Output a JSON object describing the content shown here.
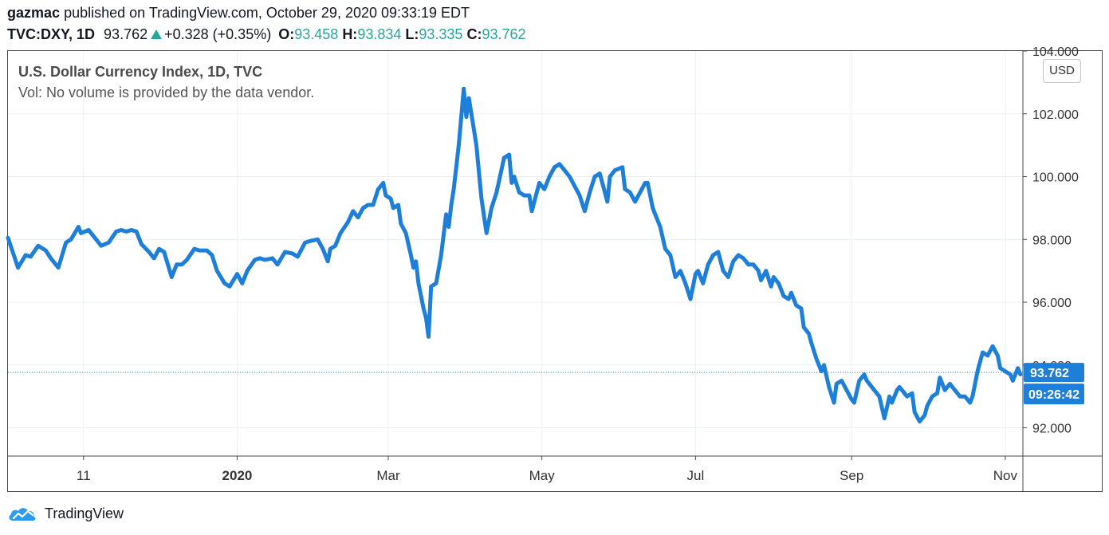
{
  "header": {
    "author": "gazmac",
    "published_text": "published on TradingView.com, October 29, 2020 09:33:19 EDT",
    "symbol": "TVC:DXY, 1D",
    "last": "93.762",
    "change": "+0.328 (+0.35%)",
    "open_label": "O:",
    "open": "93.458",
    "high_label": "H:",
    "high": "93.834",
    "low_label": "L:",
    "low": "93.335",
    "close_label": "C:",
    "close": "93.762"
  },
  "legend": {
    "title": "U.S. Dollar Currency Index, 1D, TVC",
    "volume_note": "Vol: No volume is provided by the data vendor."
  },
  "currency_button": "USD",
  "footer": {
    "brand": "TradingView"
  },
  "colors": {
    "line": "#1e7fd8",
    "up": "#26a69a",
    "grid": "#eceff2",
    "price_tag": "#1e7fd8"
  },
  "chart_data": {
    "type": "line",
    "title": "U.S. Dollar Currency Index, 1D, TVC",
    "ylim": [
      91.1,
      104.0
    ],
    "y_ticks": [
      {
        "value": 92,
        "label": "92.000"
      },
      {
        "value": 94,
        "label": "94.000"
      },
      {
        "value": 96,
        "label": "96.000"
      },
      {
        "value": 98,
        "label": "98.000"
      },
      {
        "value": 100,
        "label": "100.000"
      },
      {
        "value": 102,
        "label": "102.000"
      },
      {
        "value": 104,
        "label": "104.000"
      }
    ],
    "x_ticks": [
      {
        "date": "2019-11-01",
        "label": "11",
        "bold": false
      },
      {
        "date": "2020-01-01",
        "label": "2020",
        "bold": true
      },
      {
        "date": "2020-03-01",
        "label": "Mar",
        "bold": false
      },
      {
        "date": "2020-05-01",
        "label": "May",
        "bold": false
      },
      {
        "date": "2020-07-01",
        "label": "Jul",
        "bold": false
      },
      {
        "date": "2020-09-01",
        "label": "Sep",
        "bold": false
      },
      {
        "date": "2020-11-01",
        "label": "Nov",
        "bold": false
      }
    ],
    "xlim": [
      "2019-10-02",
      "2020-11-08"
    ],
    "last_price": {
      "value": 93.762,
      "label": "93.762",
      "countdown": "09:26:42"
    },
    "series": [
      {
        "points": [
          [
            "2019-10-02",
            98.05
          ],
          [
            "2019-10-06",
            97.1
          ],
          [
            "2019-10-09",
            97.5
          ],
          [
            "2019-10-11",
            97.45
          ],
          [
            "2019-10-14",
            97.8
          ],
          [
            "2019-10-17",
            97.65
          ],
          [
            "2019-10-19",
            97.4
          ],
          [
            "2019-10-22",
            97.1
          ],
          [
            "2019-10-25",
            97.9
          ],
          [
            "2019-10-27",
            98.0
          ],
          [
            "2019-10-30",
            98.4
          ],
          [
            "2019-10-31",
            98.2
          ],
          [
            "2019-11-03",
            98.3
          ],
          [
            "2019-11-06",
            98.0
          ],
          [
            "2019-11-08",
            97.8
          ],
          [
            "2019-11-11",
            97.9
          ],
          [
            "2019-11-14",
            98.25
          ],
          [
            "2019-11-16",
            98.3
          ],
          [
            "2019-11-18",
            98.25
          ],
          [
            "2019-11-20",
            98.3
          ],
          [
            "2019-11-22",
            98.25
          ],
          [
            "2019-11-24",
            97.85
          ],
          [
            "2019-11-27",
            97.6
          ],
          [
            "2019-11-29",
            97.4
          ],
          [
            "2019-12-01",
            97.7
          ],
          [
            "2019-12-03",
            97.6
          ],
          [
            "2019-12-06",
            96.8
          ],
          [
            "2019-12-08",
            97.2
          ],
          [
            "2019-12-10",
            97.2
          ],
          [
            "2019-12-12",
            97.35
          ],
          [
            "2019-12-15",
            97.7
          ],
          [
            "2019-12-17",
            97.65
          ],
          [
            "2019-12-20",
            97.65
          ],
          [
            "2019-12-22",
            97.5
          ],
          [
            "2019-12-24",
            97.0
          ],
          [
            "2019-12-27",
            96.6
          ],
          [
            "2019-12-29",
            96.5
          ],
          [
            "2020-01-01",
            96.9
          ],
          [
            "2020-01-03",
            96.6
          ],
          [
            "2020-01-05",
            97.0
          ],
          [
            "2020-01-08",
            97.35
          ],
          [
            "2020-01-10",
            97.4
          ],
          [
            "2020-01-12",
            97.35
          ],
          [
            "2020-01-15",
            97.4
          ],
          [
            "2020-01-17",
            97.2
          ],
          [
            "2020-01-20",
            97.6
          ],
          [
            "2020-01-23",
            97.55
          ],
          [
            "2020-01-25",
            97.45
          ],
          [
            "2020-01-28",
            97.9
          ],
          [
            "2020-01-30",
            97.95
          ],
          [
            "2020-02-02",
            98.0
          ],
          [
            "2020-02-04",
            97.7
          ],
          [
            "2020-02-06",
            97.3
          ],
          [
            "2020-02-07",
            97.7
          ],
          [
            "2020-02-09",
            97.8
          ],
          [
            "2020-02-11",
            98.2
          ],
          [
            "2020-02-14",
            98.55
          ],
          [
            "2020-02-16",
            98.9
          ],
          [
            "2020-02-18",
            98.7
          ],
          [
            "2020-02-20",
            99.0
          ],
          [
            "2020-02-22",
            99.1
          ],
          [
            "2020-02-24",
            99.1
          ],
          [
            "2020-02-26",
            99.6
          ],
          [
            "2020-02-28",
            99.8
          ],
          [
            "2020-02-29",
            99.4
          ],
          [
            "2020-03-02",
            99.3
          ],
          [
            "2020-03-03",
            99.0
          ],
          [
            "2020-03-05",
            99.1
          ],
          [
            "2020-03-06",
            98.5
          ],
          [
            "2020-03-08",
            98.2
          ],
          [
            "2020-03-10",
            97.5
          ],
          [
            "2020-03-11",
            97.1
          ],
          [
            "2020-03-12",
            97.3
          ],
          [
            "2020-03-13",
            96.6
          ],
          [
            "2020-03-15",
            95.8
          ],
          [
            "2020-03-16",
            95.5
          ],
          [
            "2020-03-17",
            94.9
          ],
          [
            "2020-03-18",
            96.5
          ],
          [
            "2020-03-20",
            96.6
          ],
          [
            "2020-03-22",
            97.5
          ],
          [
            "2020-03-24",
            98.8
          ],
          [
            "2020-03-25",
            98.4
          ],
          [
            "2020-03-26",
            99.1
          ],
          [
            "2020-03-27",
            99.6
          ],
          [
            "2020-03-29",
            101.0
          ],
          [
            "2020-03-31",
            102.8
          ],
          [
            "2020-04-01",
            101.9
          ],
          [
            "2020-04-02",
            102.5
          ],
          [
            "2020-04-04",
            101.5
          ],
          [
            "2020-04-05",
            101.0
          ],
          [
            "2020-04-07",
            99.3
          ],
          [
            "2020-04-09",
            98.2
          ],
          [
            "2020-04-11",
            99.0
          ],
          [
            "2020-04-13",
            99.5
          ],
          [
            "2020-04-16",
            100.6
          ],
          [
            "2020-04-18",
            100.7
          ],
          [
            "2020-04-19",
            99.8
          ],
          [
            "2020-04-20",
            100.0
          ],
          [
            "2020-04-22",
            99.5
          ],
          [
            "2020-04-24",
            99.4
          ],
          [
            "2020-04-26",
            99.4
          ],
          [
            "2020-04-27",
            98.9
          ],
          [
            "2020-04-29",
            99.5
          ],
          [
            "2020-04-30",
            99.8
          ],
          [
            "2020-05-02",
            99.6
          ],
          [
            "2020-05-04",
            100.0
          ],
          [
            "2020-05-06",
            100.3
          ],
          [
            "2020-05-08",
            100.4
          ],
          [
            "2020-05-10",
            100.2
          ],
          [
            "2020-05-12",
            100.0
          ],
          [
            "2020-05-14",
            99.7
          ],
          [
            "2020-05-16",
            99.4
          ],
          [
            "2020-05-18",
            98.9
          ],
          [
            "2020-05-20",
            99.5
          ],
          [
            "2020-05-22",
            100.0
          ],
          [
            "2020-05-24",
            100.1
          ],
          [
            "2020-05-25",
            99.8
          ],
          [
            "2020-05-27",
            99.2
          ],
          [
            "2020-05-28",
            100.0
          ],
          [
            "2020-05-30",
            100.2
          ],
          [
            "2020-06-02",
            100.3
          ],
          [
            "2020-06-03",
            99.6
          ],
          [
            "2020-06-05",
            99.5
          ],
          [
            "2020-06-07",
            99.2
          ],
          [
            "2020-06-09",
            99.5
          ],
          [
            "2020-06-11",
            99.8
          ],
          [
            "2020-06-12",
            99.8
          ],
          [
            "2020-06-14",
            99.0
          ],
          [
            "2020-06-15",
            98.8
          ],
          [
            "2020-06-17",
            98.4
          ],
          [
            "2020-06-19",
            97.7
          ],
          [
            "2020-06-21",
            97.5
          ],
          [
            "2020-06-23",
            96.8
          ],
          [
            "2020-06-25",
            97.0
          ],
          [
            "2020-06-27",
            96.6
          ],
          [
            "2020-06-29",
            96.1
          ],
          [
            "2020-07-01",
            96.9
          ],
          [
            "2020-07-02",
            97.0
          ],
          [
            "2020-07-04",
            96.6
          ],
          [
            "2020-07-06",
            97.2
          ],
          [
            "2020-07-08",
            97.5
          ],
          [
            "2020-07-10",
            97.6
          ],
          [
            "2020-07-12",
            97.0
          ],
          [
            "2020-07-14",
            96.8
          ],
          [
            "2020-07-16",
            97.3
          ],
          [
            "2020-07-18",
            97.5
          ],
          [
            "2020-07-20",
            97.4
          ],
          [
            "2020-07-22",
            97.2
          ],
          [
            "2020-07-24",
            97.2
          ],
          [
            "2020-07-26",
            97.0
          ],
          [
            "2020-07-27",
            96.7
          ],
          [
            "2020-07-29",
            97.0
          ],
          [
            "2020-07-31",
            96.5
          ],
          [
            "2020-08-01",
            96.8
          ],
          [
            "2020-08-03",
            96.6
          ],
          [
            "2020-08-05",
            96.2
          ],
          [
            "2020-08-07",
            96.1
          ],
          [
            "2020-08-08",
            96.3
          ],
          [
            "2020-08-10",
            95.9
          ],
          [
            "2020-08-12",
            95.8
          ],
          [
            "2020-08-13",
            95.2
          ],
          [
            "2020-08-15",
            95.0
          ],
          [
            "2020-08-16",
            94.7
          ],
          [
            "2020-08-18",
            94.2
          ],
          [
            "2020-08-20",
            93.8
          ],
          [
            "2020-08-21",
            94.0
          ],
          [
            "2020-08-23",
            93.3
          ],
          [
            "2020-08-25",
            92.8
          ],
          [
            "2020-08-26",
            93.4
          ],
          [
            "2020-08-28",
            93.5
          ],
          [
            "2020-08-30",
            93.2
          ],
          [
            "2020-09-01",
            92.9
          ],
          [
            "2020-09-02",
            92.8
          ],
          [
            "2020-09-04",
            93.5
          ],
          [
            "2020-09-06",
            93.7
          ],
          [
            "2020-09-07",
            93.5
          ],
          [
            "2020-09-09",
            93.3
          ],
          [
            "2020-09-12",
            93.0
          ],
          [
            "2020-09-14",
            92.3
          ],
          [
            "2020-09-16",
            93.0
          ],
          [
            "2020-09-17",
            92.8
          ],
          [
            "2020-09-19",
            93.2
          ],
          [
            "2020-09-20",
            93.3
          ],
          [
            "2020-09-23",
            93.0
          ],
          [
            "2020-09-25",
            93.1
          ],
          [
            "2020-09-26",
            92.5
          ],
          [
            "2020-09-28",
            92.2
          ],
          [
            "2020-09-30",
            92.4
          ],
          [
            "2020-10-01",
            92.7
          ],
          [
            "2020-10-03",
            93.0
          ],
          [
            "2020-10-05",
            93.1
          ],
          [
            "2020-10-06",
            93.6
          ],
          [
            "2020-10-08",
            93.2
          ],
          [
            "2020-10-10",
            93.4
          ],
          [
            "2020-10-12",
            93.2
          ],
          [
            "2020-10-14",
            93.0
          ],
          [
            "2020-10-16",
            93.0
          ],
          [
            "2020-10-18",
            92.8
          ],
          [
            "2020-10-19",
            93.0
          ],
          [
            "2020-10-21",
            93.8
          ],
          [
            "2020-10-23",
            94.4
          ],
          [
            "2020-10-25",
            94.3
          ],
          [
            "2020-10-27",
            94.6
          ],
          [
            "2020-10-29",
            94.3
          ],
          [
            "2020-10-30",
            93.9
          ],
          [
            "2020-11-01",
            93.8
          ],
          [
            "2020-11-03",
            93.7
          ],
          [
            "2020-11-04",
            93.5
          ],
          [
            "2020-11-06",
            93.9
          ],
          [
            "2020-11-07",
            93.7
          ]
        ]
      }
    ]
  }
}
